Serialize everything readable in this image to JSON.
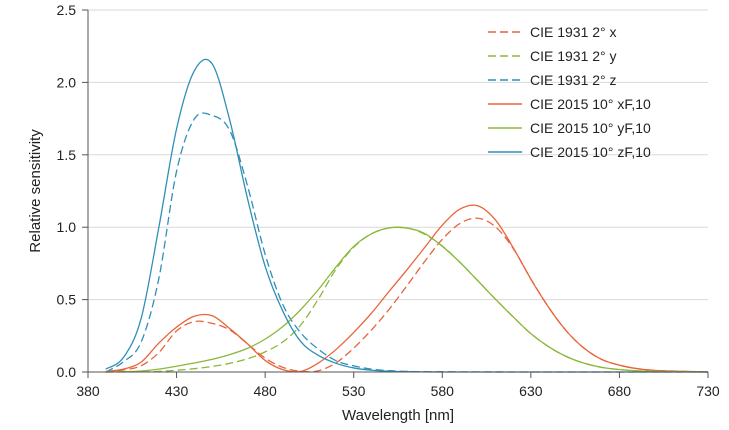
{
  "chart_data": {
    "type": "line",
    "title": "",
    "xlabel": "Wavelength [nm]",
    "ylabel": "Relative sensitivity",
    "xlim": [
      380,
      730
    ],
    "ylim": [
      0,
      2.5
    ],
    "xticks": [
      "380",
      "430",
      "480",
      "530",
      "580",
      "630",
      "680",
      "730"
    ],
    "yticks": [
      "0.0",
      "0.5",
      "1.0",
      "1.5",
      "2.0",
      "2.5"
    ],
    "grid": "horizontal",
    "legend_position": "top-right",
    "series": [
      {
        "name": "CIE 1931 2° x",
        "color": "#e8643a",
        "dash": true,
        "x": [
          390,
          400,
          410,
          420,
          430,
          440,
          450,
          460,
          470,
          480,
          490,
          500,
          510,
          520,
          530,
          540,
          550,
          560,
          570,
          580,
          590,
          600,
          610,
          620,
          630,
          640,
          650,
          660,
          670,
          680,
          690,
          700,
          720,
          730
        ],
        "y": [
          0.0,
          0.014,
          0.043,
          0.134,
          0.284,
          0.348,
          0.336,
          0.291,
          0.195,
          0.096,
          0.032,
          0.005,
          0.009,
          0.063,
          0.165,
          0.29,
          0.433,
          0.595,
          0.762,
          0.916,
          1.026,
          1.062,
          1.003,
          0.854,
          0.642,
          0.448,
          0.284,
          0.165,
          0.087,
          0.047,
          0.023,
          0.011,
          0.003,
          0.001
        ]
      },
      {
        "name": "CIE 1931 2° y",
        "color": "#8cb83a",
        "dash": true,
        "x": [
          390,
          400,
          410,
          420,
          430,
          440,
          450,
          460,
          470,
          480,
          490,
          500,
          510,
          520,
          530,
          540,
          550,
          560,
          570,
          580,
          590,
          600,
          610,
          620,
          630,
          640,
          650,
          660,
          670,
          680,
          690,
          700,
          720,
          730
        ],
        "y": [
          0.0,
          0.0,
          0.001,
          0.004,
          0.012,
          0.023,
          0.038,
          0.06,
          0.091,
          0.139,
          0.208,
          0.323,
          0.503,
          0.71,
          0.862,
          0.954,
          0.995,
          0.995,
          0.952,
          0.87,
          0.757,
          0.631,
          0.503,
          0.381,
          0.265,
          0.175,
          0.107,
          0.061,
          0.032,
          0.017,
          0.008,
          0.004,
          0.001,
          0.0
        ]
      },
      {
        "name": "CIE 1931 2° z",
        "color": "#2f8fb8",
        "dash": true,
        "x": [
          390,
          400,
          410,
          420,
          430,
          440,
          450,
          460,
          470,
          480,
          490,
          500,
          510,
          520,
          530,
          540,
          550,
          560,
          570,
          580,
          590,
          600,
          620,
          640,
          660,
          700,
          730
        ],
        "y": [
          0.0,
          0.07,
          0.207,
          0.646,
          1.386,
          1.747,
          1.772,
          1.669,
          1.288,
          0.813,
          0.465,
          0.272,
          0.158,
          0.078,
          0.042,
          0.02,
          0.009,
          0.004,
          0.002,
          0.002,
          0.001,
          0.001,
          0.0,
          0.0,
          0.0,
          0.0,
          0.0
        ]
      },
      {
        "name": "CIE 2015 10° xF,10",
        "color": "#e8643a",
        "dash": false,
        "x": [
          390,
          400,
          410,
          420,
          430,
          440,
          450,
          460,
          470,
          480,
          490,
          500,
          510,
          520,
          530,
          540,
          550,
          560,
          570,
          580,
          590,
          600,
          610,
          620,
          630,
          640,
          650,
          660,
          670,
          680,
          690,
          700,
          720,
          730
        ],
        "y": [
          0.004,
          0.02,
          0.068,
          0.2,
          0.31,
          0.385,
          0.389,
          0.3,
          0.195,
          0.08,
          0.016,
          0.004,
          0.062,
          0.155,
          0.273,
          0.406,
          0.557,
          0.705,
          0.859,
          1.014,
          1.125,
          1.148,
          1.05,
          0.859,
          0.642,
          0.447,
          0.284,
          0.165,
          0.087,
          0.047,
          0.023,
          0.011,
          0.003,
          0.001
        ]
      },
      {
        "name": "CIE 2015 10° yF,10",
        "color": "#8cb83a",
        "dash": false,
        "x": [
          390,
          400,
          410,
          420,
          430,
          440,
          450,
          460,
          470,
          480,
          490,
          500,
          510,
          520,
          530,
          540,
          550,
          560,
          570,
          580,
          590,
          600,
          610,
          620,
          630,
          640,
          650,
          660,
          670,
          680,
          690,
          700,
          720,
          730
        ],
        "y": [
          0.0,
          0.002,
          0.007,
          0.02,
          0.04,
          0.062,
          0.087,
          0.12,
          0.163,
          0.227,
          0.314,
          0.43,
          0.569,
          0.725,
          0.867,
          0.954,
          0.995,
          0.994,
          0.957,
          0.868,
          0.757,
          0.631,
          0.503,
          0.381,
          0.265,
          0.175,
          0.107,
          0.061,
          0.032,
          0.017,
          0.008,
          0.004,
          0.001,
          0.0
        ]
      },
      {
        "name": "CIE 2015 10° zF,10",
        "color": "#2f8fb8",
        "dash": false,
        "x": [
          390,
          400,
          410,
          420,
          430,
          440,
          450,
          460,
          470,
          480,
          490,
          500,
          510,
          520,
          530,
          540,
          550,
          560,
          570,
          580,
          590,
          600,
          620,
          640,
          660,
          700,
          730
        ],
        "y": [
          0.02,
          0.1,
          0.37,
          1.0,
          1.68,
          2.08,
          2.13,
          1.74,
          1.2,
          0.73,
          0.42,
          0.212,
          0.115,
          0.06,
          0.028,
          0.012,
          0.005,
          0.002,
          0.001,
          0.0,
          0.0,
          0.0,
          0.0,
          0.0,
          0.0,
          0.0,
          0.0
        ]
      }
    ]
  }
}
